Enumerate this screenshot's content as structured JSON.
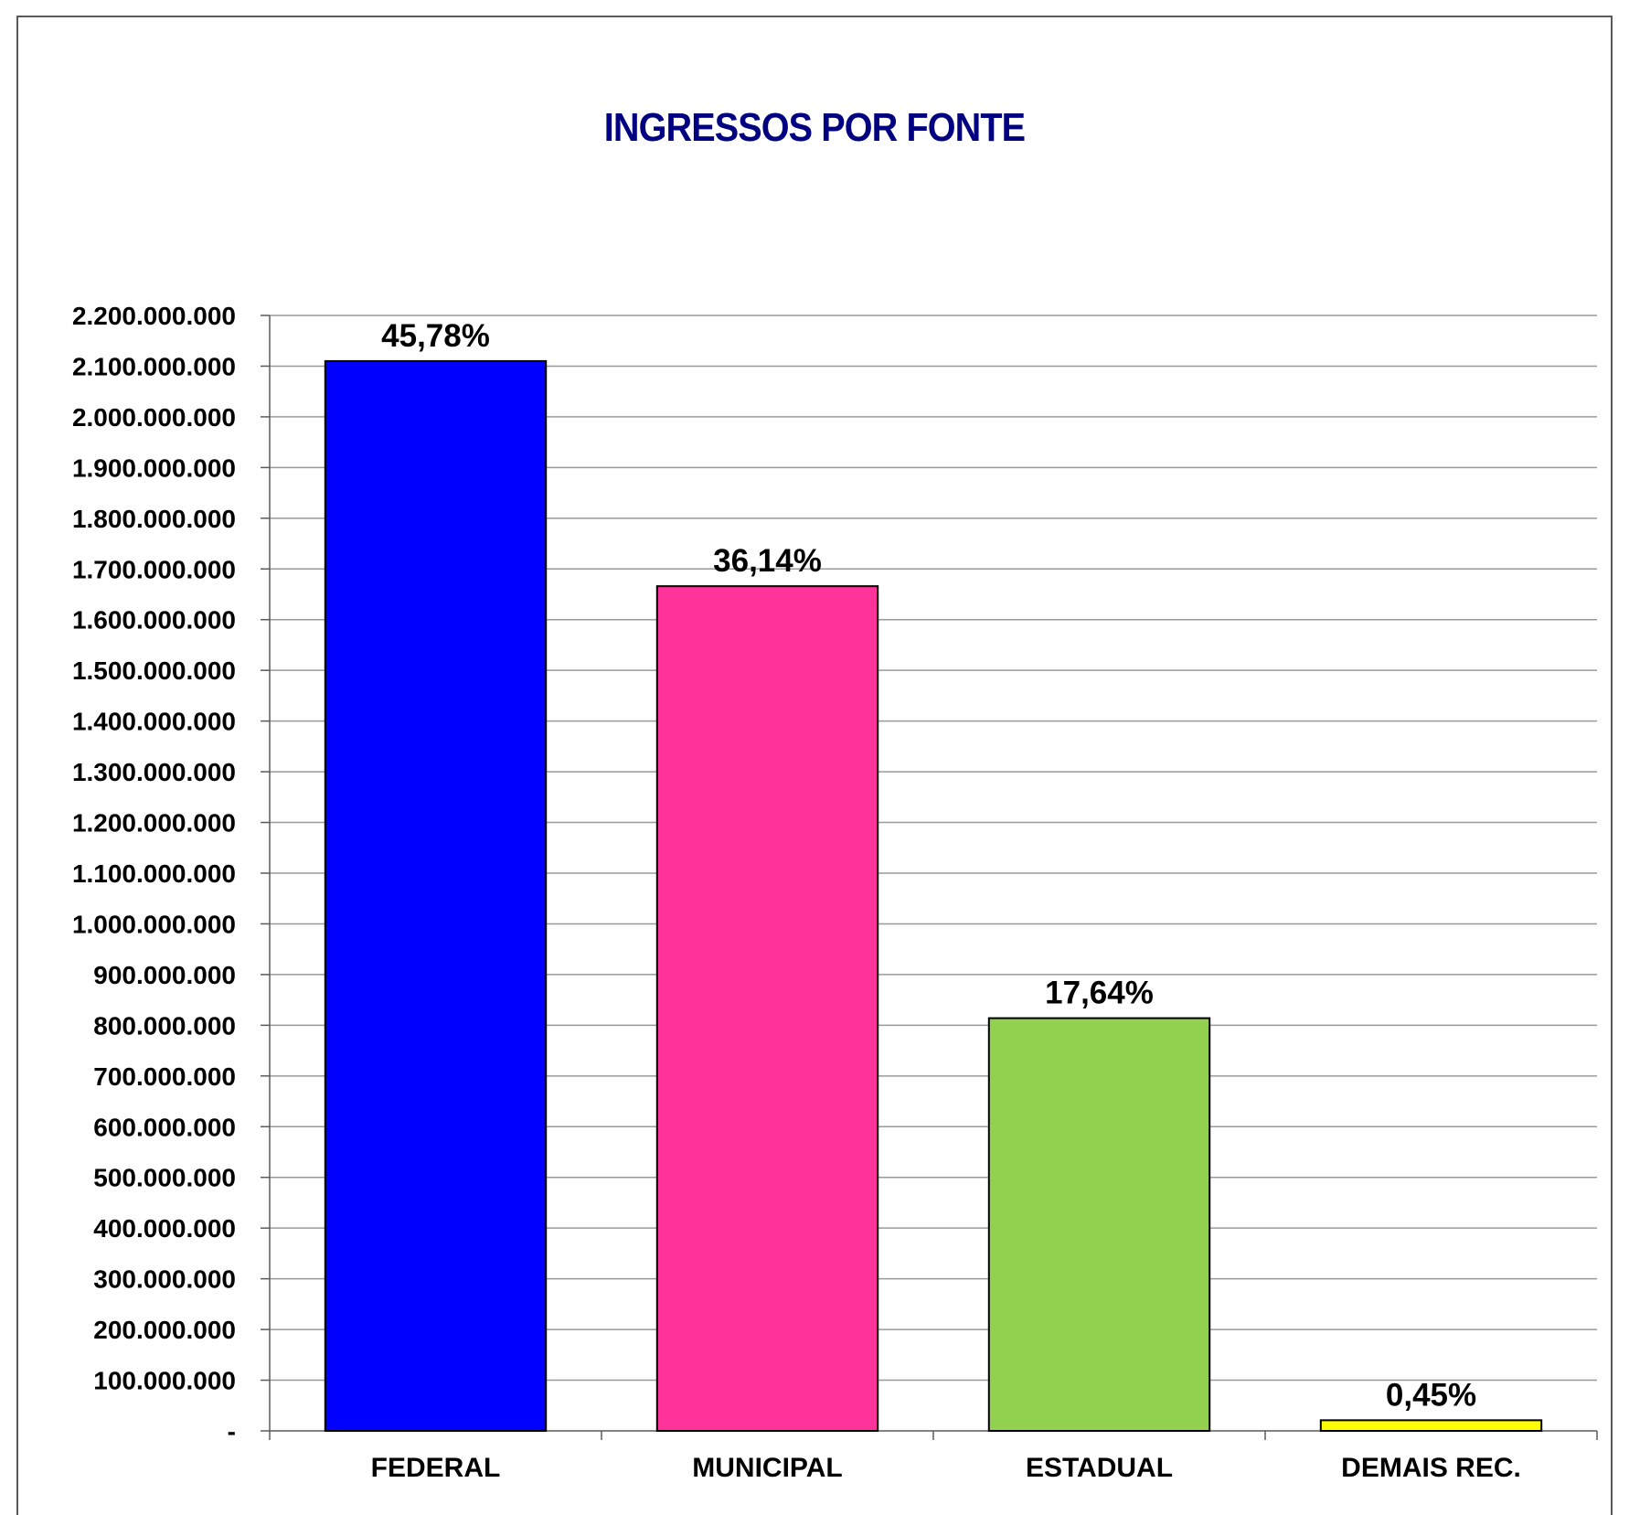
{
  "chart_data": {
    "type": "bar",
    "title": "INGRESSOS POR FONTE",
    "xlabel": "",
    "ylabel": "",
    "categories": [
      "FEDERAL",
      "MUNICIPAL",
      "ESTADUAL",
      "DEMAIS REC."
    ],
    "values": [
      2110000000,
      1666000000,
      814000000,
      21000000
    ],
    "data_labels": [
      "45,78%",
      "36,14%",
      "17,64%",
      "0,45%"
    ],
    "colors": [
      "#0000ff",
      "#ff3399",
      "#92d050",
      "#ffff00"
    ],
    "ylim": [
      0,
      2200000000
    ],
    "yticks": [
      0,
      100000000,
      200000000,
      300000000,
      400000000,
      500000000,
      600000000,
      700000000,
      800000000,
      900000000,
      1000000000,
      1100000000,
      1200000000,
      1300000000,
      1400000000,
      1500000000,
      1600000000,
      1700000000,
      1800000000,
      1900000000,
      2000000000,
      2100000000,
      2200000000
    ],
    "ytick_labels": [
      "-",
      "100.000.000",
      "200.000.000",
      "300.000.000",
      "400.000.000",
      "500.000.000",
      "600.000.000",
      "700.000.000",
      "800.000.000",
      "900.000.000",
      "1.000.000.000",
      "1.100.000.000",
      "1.200.000.000",
      "1.300.000.000",
      "1.400.000.000",
      "1.500.000.000",
      "1.600.000.000",
      "1.700.000.000",
      "1.800.000.000",
      "1.900.000.000",
      "2.000.000.000",
      "2.100.000.000",
      "2.200.000.000"
    ],
    "grid": true,
    "legend": "none"
  }
}
